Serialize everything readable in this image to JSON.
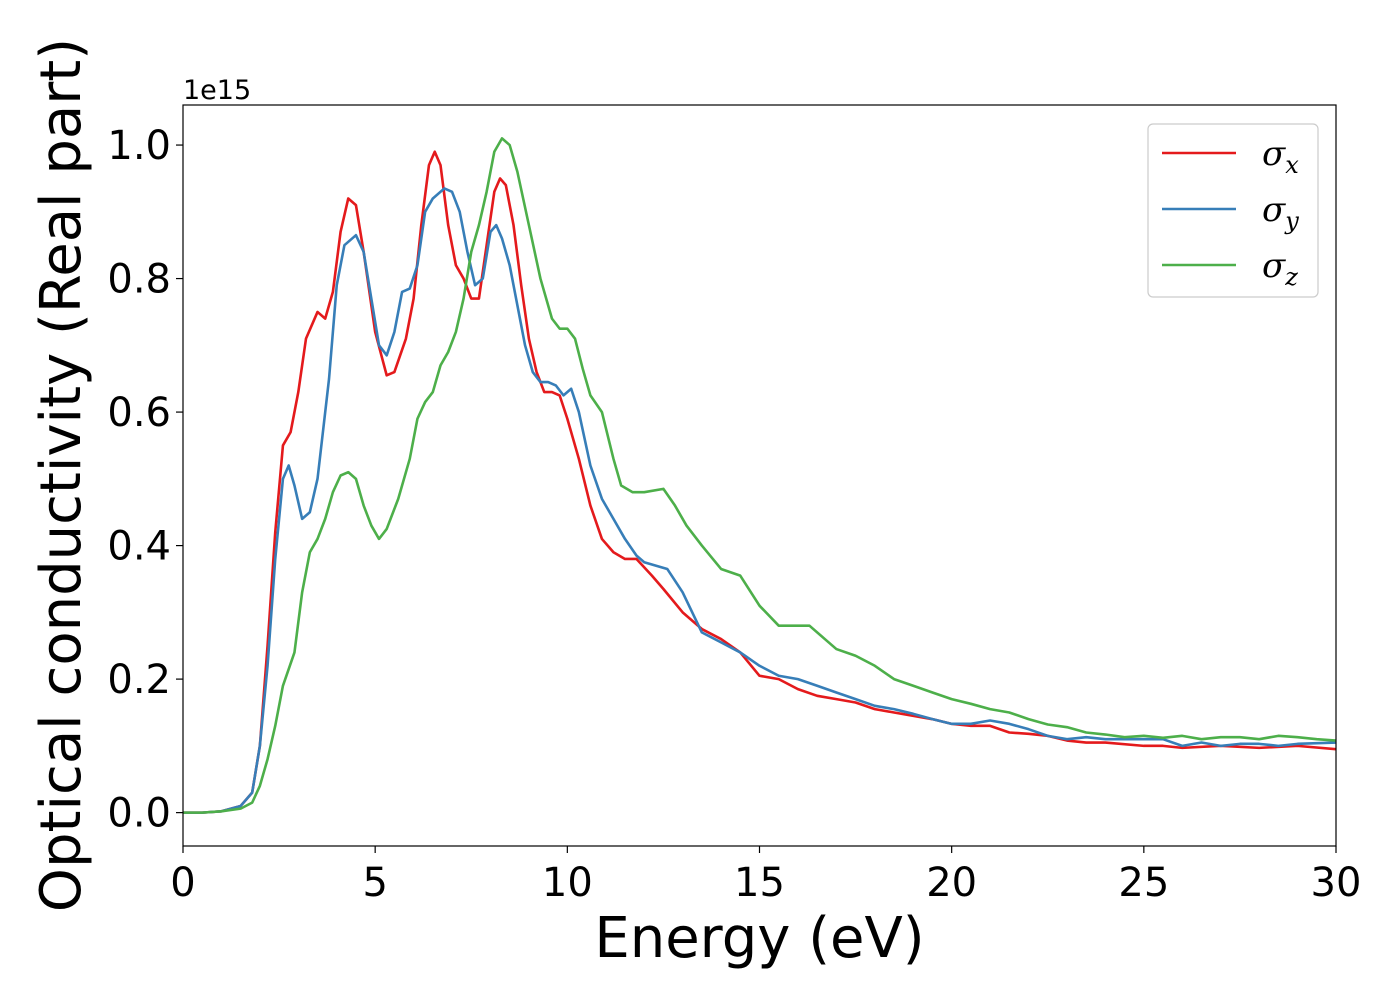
{
  "chart_data": {
    "type": "line",
    "title": "",
    "xlabel": "Energy (eV)",
    "ylabel": "Optical conductivity (Real part)",
    "y_offset_label": "1e15",
    "xlim": [
      0,
      30
    ],
    "ylim": [
      -0.05,
      1.06
    ],
    "x_ticks": [
      0,
      5,
      10,
      15,
      20,
      25,
      30
    ],
    "x_tick_labels": [
      "0",
      "5",
      "10",
      "15",
      "20",
      "25",
      "30"
    ],
    "y_ticks": [
      0.0,
      0.2,
      0.4,
      0.6,
      0.8,
      1.0
    ],
    "y_tick_labels": [
      "0.0",
      "0.2",
      "0.4",
      "0.6",
      "0.8",
      "1.0"
    ],
    "grid": false,
    "legend_position": "top-right",
    "series": [
      {
        "name": "σ",
        "subscript": "x",
        "color": "#e41a1c",
        "points": [
          [
            0,
            0
          ],
          [
            0.5,
            0
          ],
          [
            1.0,
            0.002
          ],
          [
            1.5,
            0.01
          ],
          [
            1.8,
            0.03
          ],
          [
            2.0,
            0.1
          ],
          [
            2.2,
            0.25
          ],
          [
            2.4,
            0.42
          ],
          [
            2.6,
            0.55
          ],
          [
            2.8,
            0.57
          ],
          [
            3.0,
            0.63
          ],
          [
            3.2,
            0.71
          ],
          [
            3.5,
            0.75
          ],
          [
            3.7,
            0.74
          ],
          [
            3.9,
            0.78
          ],
          [
            4.1,
            0.87
          ],
          [
            4.3,
            0.92
          ],
          [
            4.5,
            0.91
          ],
          [
            4.7,
            0.84
          ],
          [
            5.0,
            0.72
          ],
          [
            5.3,
            0.655
          ],
          [
            5.5,
            0.66
          ],
          [
            5.8,
            0.71
          ],
          [
            6.0,
            0.77
          ],
          [
            6.2,
            0.88
          ],
          [
            6.4,
            0.97
          ],
          [
            6.55,
            0.99
          ],
          [
            6.7,
            0.97
          ],
          [
            6.9,
            0.88
          ],
          [
            7.1,
            0.82
          ],
          [
            7.3,
            0.8
          ],
          [
            7.5,
            0.77
          ],
          [
            7.7,
            0.77
          ],
          [
            7.9,
            0.85
          ],
          [
            8.1,
            0.93
          ],
          [
            8.25,
            0.95
          ],
          [
            8.4,
            0.94
          ],
          [
            8.6,
            0.88
          ],
          [
            8.8,
            0.79
          ],
          [
            9.0,
            0.71
          ],
          [
            9.2,
            0.66
          ],
          [
            9.4,
            0.63
          ],
          [
            9.6,
            0.63
          ],
          [
            9.8,
            0.625
          ],
          [
            10.0,
            0.59
          ],
          [
            10.3,
            0.53
          ],
          [
            10.6,
            0.46
          ],
          [
            10.9,
            0.41
          ],
          [
            11.2,
            0.39
          ],
          [
            11.5,
            0.38
          ],
          [
            11.8,
            0.38
          ],
          [
            12.2,
            0.355
          ],
          [
            12.5,
            0.335
          ],
          [
            13.0,
            0.3
          ],
          [
            13.5,
            0.275
          ],
          [
            14.0,
            0.26
          ],
          [
            14.5,
            0.24
          ],
          [
            15.0,
            0.205
          ],
          [
            15.5,
            0.2
          ],
          [
            16.0,
            0.185
          ],
          [
            16.5,
            0.175
          ],
          [
            17.0,
            0.17
          ],
          [
            17.5,
            0.165
          ],
          [
            18.0,
            0.155
          ],
          [
            18.5,
            0.15
          ],
          [
            19.0,
            0.145
          ],
          [
            19.5,
            0.14
          ],
          [
            20.0,
            0.133
          ],
          [
            20.5,
            0.13
          ],
          [
            21.0,
            0.13
          ],
          [
            21.5,
            0.12
          ],
          [
            22.0,
            0.118
          ],
          [
            22.5,
            0.115
          ],
          [
            23.0,
            0.108
          ],
          [
            23.5,
            0.105
          ],
          [
            24.0,
            0.105
          ],
          [
            25.0,
            0.1
          ],
          [
            25.5,
            0.1
          ],
          [
            26.0,
            0.097
          ],
          [
            27.0,
            0.1
          ],
          [
            28.0,
            0.097
          ],
          [
            29.0,
            0.1
          ],
          [
            30.0,
            0.095
          ]
        ]
      },
      {
        "name": "σ",
        "subscript": "y",
        "color": "#377eb8",
        "points": [
          [
            0,
            0
          ],
          [
            0.5,
            0
          ],
          [
            1.0,
            0.002
          ],
          [
            1.5,
            0.01
          ],
          [
            1.8,
            0.03
          ],
          [
            2.0,
            0.1
          ],
          [
            2.2,
            0.22
          ],
          [
            2.4,
            0.38
          ],
          [
            2.6,
            0.5
          ],
          [
            2.75,
            0.52
          ],
          [
            2.9,
            0.49
          ],
          [
            3.1,
            0.44
          ],
          [
            3.3,
            0.45
          ],
          [
            3.5,
            0.5
          ],
          [
            3.8,
            0.65
          ],
          [
            4.0,
            0.79
          ],
          [
            4.2,
            0.85
          ],
          [
            4.5,
            0.865
          ],
          [
            4.7,
            0.84
          ],
          [
            4.9,
            0.77
          ],
          [
            5.1,
            0.7
          ],
          [
            5.3,
            0.685
          ],
          [
            5.5,
            0.72
          ],
          [
            5.7,
            0.78
          ],
          [
            5.9,
            0.785
          ],
          [
            6.1,
            0.82
          ],
          [
            6.3,
            0.9
          ],
          [
            6.5,
            0.92
          ],
          [
            6.8,
            0.935
          ],
          [
            7.0,
            0.93
          ],
          [
            7.2,
            0.9
          ],
          [
            7.4,
            0.84
          ],
          [
            7.6,
            0.79
          ],
          [
            7.8,
            0.8
          ],
          [
            8.0,
            0.87
          ],
          [
            8.15,
            0.88
          ],
          [
            8.3,
            0.86
          ],
          [
            8.5,
            0.82
          ],
          [
            8.7,
            0.76
          ],
          [
            8.9,
            0.7
          ],
          [
            9.1,
            0.66
          ],
          [
            9.3,
            0.645
          ],
          [
            9.5,
            0.645
          ],
          [
            9.7,
            0.64
          ],
          [
            9.9,
            0.625
          ],
          [
            10.1,
            0.635
          ],
          [
            10.3,
            0.6
          ],
          [
            10.6,
            0.52
          ],
          [
            10.9,
            0.47
          ],
          [
            11.2,
            0.44
          ],
          [
            11.5,
            0.41
          ],
          [
            11.8,
            0.385
          ],
          [
            12.0,
            0.375
          ],
          [
            12.3,
            0.37
          ],
          [
            12.6,
            0.365
          ],
          [
            13.0,
            0.33
          ],
          [
            13.5,
            0.27
          ],
          [
            14.0,
            0.255
          ],
          [
            14.5,
            0.24
          ],
          [
            15.0,
            0.22
          ],
          [
            15.5,
            0.205
          ],
          [
            16.0,
            0.2
          ],
          [
            16.5,
            0.19
          ],
          [
            17.0,
            0.18
          ],
          [
            17.5,
            0.17
          ],
          [
            18.0,
            0.16
          ],
          [
            18.5,
            0.155
          ],
          [
            19.0,
            0.148
          ],
          [
            19.5,
            0.14
          ],
          [
            20.0,
            0.133
          ],
          [
            20.5,
            0.133
          ],
          [
            21.0,
            0.138
          ],
          [
            21.5,
            0.133
          ],
          [
            22.0,
            0.125
          ],
          [
            22.5,
            0.115
          ],
          [
            23.0,
            0.11
          ],
          [
            23.5,
            0.113
          ],
          [
            24.0,
            0.11
          ],
          [
            25.0,
            0.11
          ],
          [
            25.5,
            0.11
          ],
          [
            26.0,
            0.1
          ],
          [
            26.5,
            0.105
          ],
          [
            27.0,
            0.1
          ],
          [
            27.5,
            0.103
          ],
          [
            28.0,
            0.103
          ],
          [
            28.5,
            0.1
          ],
          [
            29.0,
            0.103
          ],
          [
            30.0,
            0.105
          ]
        ]
      },
      {
        "name": "σ",
        "subscript": "z",
        "color": "#4daf4a",
        "points": [
          [
            0,
            0
          ],
          [
            0.5,
            0
          ],
          [
            1.0,
            0.002
          ],
          [
            1.5,
            0.006
          ],
          [
            1.8,
            0.015
          ],
          [
            2.0,
            0.04
          ],
          [
            2.2,
            0.08
          ],
          [
            2.4,
            0.13
          ],
          [
            2.6,
            0.19
          ],
          [
            2.9,
            0.24
          ],
          [
            3.1,
            0.33
          ],
          [
            3.3,
            0.39
          ],
          [
            3.5,
            0.41
          ],
          [
            3.7,
            0.44
          ],
          [
            3.9,
            0.48
          ],
          [
            4.1,
            0.505
          ],
          [
            4.3,
            0.51
          ],
          [
            4.5,
            0.5
          ],
          [
            4.7,
            0.46
          ],
          [
            4.9,
            0.43
          ],
          [
            5.1,
            0.41
          ],
          [
            5.3,
            0.425
          ],
          [
            5.6,
            0.47
          ],
          [
            5.9,
            0.53
          ],
          [
            6.1,
            0.59
          ],
          [
            6.3,
            0.615
          ],
          [
            6.5,
            0.63
          ],
          [
            6.7,
            0.67
          ],
          [
            6.9,
            0.69
          ],
          [
            7.1,
            0.72
          ],
          [
            7.3,
            0.77
          ],
          [
            7.5,
            0.84
          ],
          [
            7.7,
            0.88
          ],
          [
            7.9,
            0.93
          ],
          [
            8.1,
            0.99
          ],
          [
            8.3,
            1.01
          ],
          [
            8.5,
            1.0
          ],
          [
            8.7,
            0.96
          ],
          [
            9.0,
            0.88
          ],
          [
            9.3,
            0.8
          ],
          [
            9.6,
            0.74
          ],
          [
            9.8,
            0.725
          ],
          [
            10.0,
            0.725
          ],
          [
            10.2,
            0.71
          ],
          [
            10.4,
            0.665
          ],
          [
            10.6,
            0.625
          ],
          [
            10.9,
            0.6
          ],
          [
            11.2,
            0.53
          ],
          [
            11.4,
            0.49
          ],
          [
            11.7,
            0.48
          ],
          [
            12.0,
            0.48
          ],
          [
            12.5,
            0.485
          ],
          [
            12.8,
            0.46
          ],
          [
            13.1,
            0.43
          ],
          [
            13.5,
            0.4
          ],
          [
            14.0,
            0.365
          ],
          [
            14.5,
            0.355
          ],
          [
            15.0,
            0.31
          ],
          [
            15.5,
            0.28
          ],
          [
            16.0,
            0.28
          ],
          [
            16.3,
            0.28
          ],
          [
            16.7,
            0.26
          ],
          [
            17.0,
            0.245
          ],
          [
            17.5,
            0.235
          ],
          [
            18.0,
            0.22
          ],
          [
            18.5,
            0.2
          ],
          [
            19.0,
            0.19
          ],
          [
            19.5,
            0.18
          ],
          [
            20.0,
            0.17
          ],
          [
            20.5,
            0.163
          ],
          [
            21.0,
            0.155
          ],
          [
            21.5,
            0.15
          ],
          [
            22.0,
            0.14
          ],
          [
            22.5,
            0.132
          ],
          [
            23.0,
            0.128
          ],
          [
            23.5,
            0.12
          ],
          [
            24.0,
            0.117
          ],
          [
            24.5,
            0.113
          ],
          [
            25.0,
            0.115
          ],
          [
            25.5,
            0.112
          ],
          [
            26.0,
            0.115
          ],
          [
            26.5,
            0.11
          ],
          [
            27.0,
            0.113
          ],
          [
            27.5,
            0.113
          ],
          [
            28.0,
            0.11
          ],
          [
            28.5,
            0.115
          ],
          [
            29.0,
            0.113
          ],
          [
            29.5,
            0.11
          ],
          [
            30.0,
            0.108
          ]
        ]
      }
    ]
  }
}
